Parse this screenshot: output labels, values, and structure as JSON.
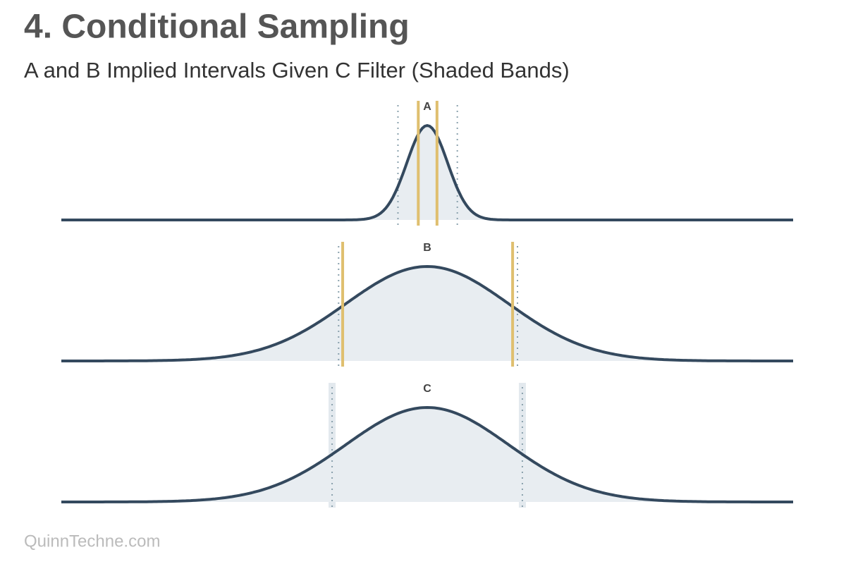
{
  "title": "4. Conditional Sampling",
  "subtitle": "A and B Implied Intervals Given C Filter (Shaded Bands)",
  "footer": "QuinnTechne.com",
  "chart_data": [
    {
      "type": "density",
      "label": "A",
      "mean": 0,
      "sd": 0.25,
      "xlim": [
        -4.5,
        4.5
      ],
      "color": "#34495e",
      "fill_color": "#e8edf1",
      "lines": [
        -0.11,
        0.12
      ],
      "line_color": "#dfbf6f",
      "dotted": [
        -0.36,
        0.37
      ],
      "dotted_color": "#8aa1ad"
    },
    {
      "type": "density",
      "label": "B",
      "mean": 0,
      "sd": 1,
      "xlim": [
        -4.5,
        4.5
      ],
      "color": "#34495e",
      "fill_color": "#e8edf1",
      "lines": [
        -1.04,
        1.05
      ],
      "line_color": "#dfbf6f",
      "dotted": [
        -1.09,
        1.11
      ],
      "dotted_color": "#8aa1ad"
    },
    {
      "type": "density",
      "label": "C",
      "mean": 0,
      "sd": 1,
      "xlim": [
        -4.5,
        4.5
      ],
      "color": "#34495e",
      "fill_color": "#e8edf1",
      "bands": [
        -1.17,
        1.17
      ],
      "band_color": "#e3e9ee",
      "dotted": [
        -1.17,
        1.17
      ],
      "dotted_color": "#8aa1ad"
    }
  ]
}
